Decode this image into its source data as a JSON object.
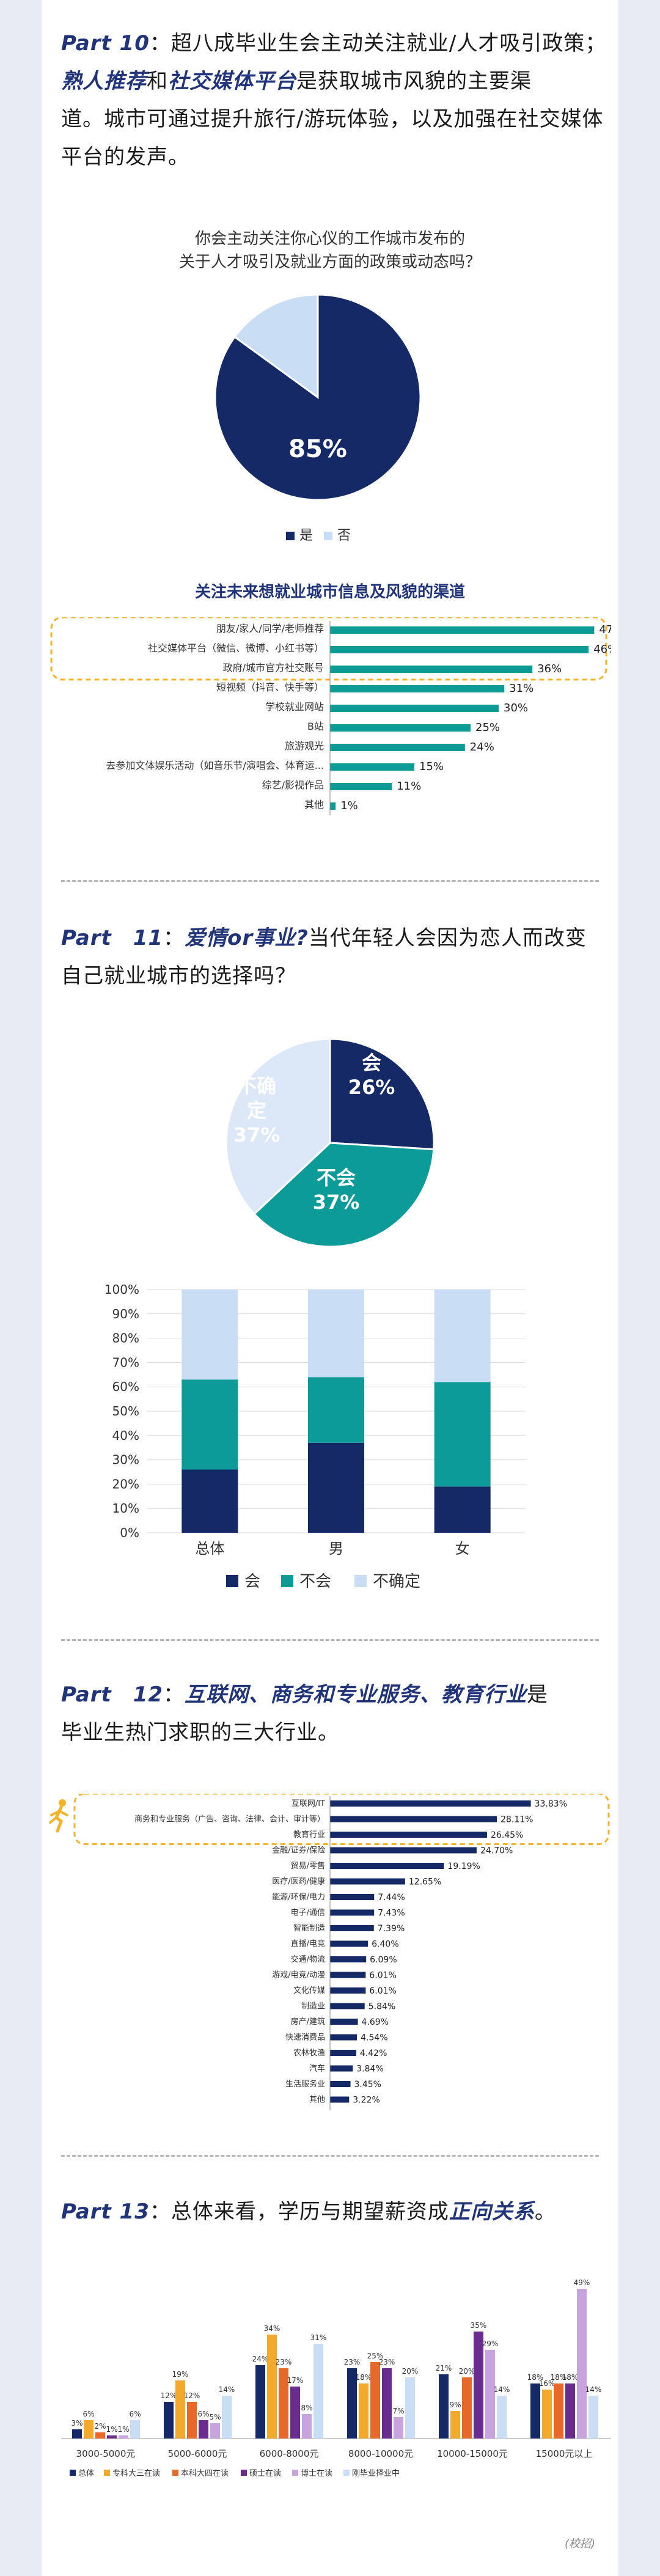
{
  "colors": {
    "navy": "#142965",
    "teal": "#0d9b97",
    "light": "#c9ddf5",
    "heading": "#21347a",
    "highlight": "#f3b32b"
  },
  "part10": {
    "label": "Part 10",
    "line1_pre": "：超八成毕业生会主动关注就业/人才吸引政策；",
    "line2_emph1": "熟人推荐",
    "line2_and": "和",
    "line2_emph2": "社交媒体平台",
    "line2_post": "是获取城市风貌的主要渠",
    "line3": "道。城市可通过提升旅行/游玩体验，以及加强在社交媒体",
    "line4": "平台的发声。"
  },
  "part11": {
    "label": "Part　11",
    "colon": "：",
    "emph": "爱情or事业?",
    "line1_post": "当代年轻人会因为恋人而改变",
    "line2": "自己就业城市的选择吗？"
  },
  "part12": {
    "label": "Part　12",
    "colon": "：",
    "emph": "互联网、商务和专业服务、教育行业",
    "line1_post": "是",
    "line2": "毕业生热门求职的三大行业。"
  },
  "part13": {
    "label": "Part 13",
    "pre": "：总体来看，学历与期望薪资成",
    "emph": "正向关系",
    "post": "。"
  },
  "source_note": "(校招)",
  "chart_data": [
    {
      "type": "pie",
      "title_line1": "你会主动关注你心仪的工作城市发布的",
      "title_line2": "关于人才吸引及就业方面的政策或动态吗？",
      "labels": [
        "是",
        "否"
      ],
      "values": [
        85,
        15
      ],
      "slice_label": "85%",
      "colors": [
        "#142965",
        "#c9ddf5"
      ]
    },
    {
      "type": "bar",
      "orientation": "horizontal",
      "title": "关注未来想就业城市信息及风貌的渠道",
      "categories": [
        "朋友/家人/同学/老师推荐",
        "社交媒体平台（微信、微博、小红书等）",
        "政府/城市官方社交账号",
        "短视频（抖音、快手等）",
        "学校就业网站",
        "B站",
        "旅游观光",
        "去参加文体娱乐活动（如音乐节/演唱会、体育运...",
        "综艺/影视作品",
        "其他"
      ],
      "values": [
        47,
        46,
        36,
        31,
        30,
        25,
        24,
        15,
        11,
        1
      ],
      "value_labels": [
        "47%",
        "46%",
        "36%",
        "31%",
        "30%",
        "25%",
        "24%",
        "15%",
        "11%",
        "1%"
      ],
      "highlighted": 3
    },
    {
      "type": "pie",
      "labels": [
        "会",
        "不会",
        "不确定"
      ],
      "values": [
        26,
        37,
        37
      ],
      "slice_texts": [
        [
          "会",
          "26%"
        ],
        [
          "不会",
          "37%"
        ],
        [
          "不确",
          "定",
          "37%"
        ]
      ],
      "colors": [
        "#142965",
        "#0d9b97",
        "#dce8f8"
      ]
    },
    {
      "type": "bar",
      "stacked": true,
      "percent": true,
      "categories": [
        "总体",
        "男",
        "女"
      ],
      "series": [
        {
          "name": "会",
          "values": [
            26,
            37,
            19
          ]
        },
        {
          "name": "不会",
          "values": [
            37,
            27,
            43
          ]
        },
        {
          "name": "不确定",
          "values": [
            37,
            36,
            38
          ]
        }
      ],
      "yticks": [
        "0%",
        "10%",
        "20%",
        "30%",
        "40%",
        "50%",
        "60%",
        "70%",
        "80%",
        "90%",
        "100%"
      ],
      "ylim": [
        0,
        100
      ],
      "legend": "bottom"
    },
    {
      "type": "bar",
      "orientation": "horizontal",
      "categories": [
        "互联网/IT",
        "商务和专业服务（广告、咨询、法律、会计、审计等）",
        "教育行业",
        "金融/证券/保险",
        "贸易/零售",
        "医疗/医药/健康",
        "能源/环保/电力",
        "电子/通信",
        "智能制造",
        "直播/电竞",
        "交通/物流",
        "游戏/电竞/动漫",
        "文化传媒",
        "制造业",
        "房产/建筑",
        "快速消费品",
        "农林牧渔",
        "汽车",
        "生活服务业",
        "其他"
      ],
      "values": [
        33.83,
        28.11,
        26.45,
        24.7,
        19.19,
        12.65,
        7.44,
        7.43,
        7.39,
        6.4,
        6.09,
        6.01,
        6.01,
        5.84,
        4.69,
        4.54,
        4.42,
        3.84,
        3.45,
        3.22
      ],
      "value_labels": [
        "33.83%",
        "28.11%",
        "26.45%",
        "24.70%",
        "19.19%",
        "12.65%",
        "7.44%",
        "7.43%",
        "7.39%",
        "6.40%",
        "6.09%",
        "6.01%",
        "6.01%",
        "5.84%",
        "4.69%",
        "4.54%",
        "4.42%",
        "3.84%",
        "3.45%",
        "3.22%"
      ],
      "highlighted": 3
    },
    {
      "type": "bar",
      "categories": [
        "3000-5000元",
        "5000-6000元",
        "6000-8000元",
        "8000-10000元",
        "10000-15000元",
        "15000元以上"
      ],
      "series": [
        {
          "name": "总体",
          "color": "#142965",
          "values": [
            3,
            12,
            24,
            23,
            21,
            18
          ]
        },
        {
          "name": "专科大三在读",
          "color": "#f3a92b",
          "values": [
            6,
            19,
            34,
            18,
            9,
            16
          ]
        },
        {
          "name": "本科大四在读",
          "color": "#e8682a",
          "values": [
            2,
            12,
            23,
            25,
            20,
            18
          ]
        },
        {
          "name": "硕士在读",
          "color": "#6a2c8f",
          "values": [
            1,
            6,
            17,
            23,
            35,
            18
          ]
        },
        {
          "name": "博士在读",
          "color": "#c7a4dd",
          "values": [
            1,
            5,
            8,
            7,
            29,
            49
          ]
        },
        {
          "name": "刚毕业择业中",
          "color": "#c9ddf5",
          "values": [
            6,
            14,
            31,
            20,
            14,
            14
          ]
        }
      ],
      "legend": "bottom"
    }
  ]
}
